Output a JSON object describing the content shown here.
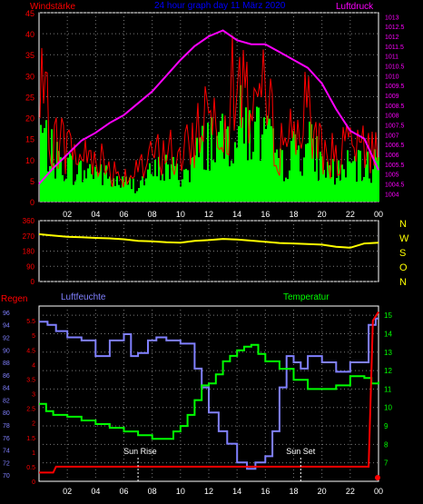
{
  "header": {
    "left": "Windstärke",
    "center": "24 hour graph day  11 März 2020",
    "right": "Luftdruck"
  },
  "labels": {
    "regen": "Regen",
    "luftfeuchte": "Luftfeuchte",
    "temperatur": "Temperatur",
    "sunrise": "Sun Rise",
    "sunset": "Sun Set"
  },
  "compass": [
    "N",
    "W",
    "S",
    "O",
    "N"
  ],
  "colors": {
    "background": "#000000",
    "wind": "#ff0000",
    "gust": "#00ff00",
    "pressure": "#ff00ff",
    "direction": "#ffff00",
    "humidity": "#8080ff",
    "temperature": "#00ff00",
    "rain": "#ff0000",
    "grid": "#808080",
    "left_axis": "#ff0000",
    "header_center": "#0000ff"
  },
  "chart_data": [
    {
      "type": "line",
      "name": "wind",
      "x_ticks": [
        "02",
        "04",
        "06",
        "08",
        "10",
        "12",
        "14",
        "16",
        "18",
        "20",
        "22",
        "00"
      ],
      "x_range_hours": [
        0,
        24
      ],
      "y_left_ticks": [
        "0",
        "5",
        "10",
        "15",
        "20",
        "25",
        "30",
        "35",
        "40",
        "45"
      ],
      "y_left_range": [
        0,
        45
      ],
      "y_right_ticks": [
        "1004",
        "1004.5",
        "1005",
        "1005.5",
        "1006",
        "1006.5",
        "1007",
        "1007.5",
        "1008",
        "1008.5",
        "1009",
        "1009.5",
        "1010",
        "1010.5",
        "1011",
        "1011.5",
        "1012",
        "1012.5",
        "1013"
      ],
      "y_right_range": [
        1003.6,
        1013.2
      ],
      "wind_profile": {
        "x": [
          0,
          1,
          2,
          3,
          4,
          5,
          6,
          7,
          8,
          9,
          10,
          11,
          12,
          13,
          14,
          15,
          16,
          17,
          18,
          19,
          20,
          21,
          22,
          23,
          24
        ],
        "y": [
          20,
          12,
          10,
          8,
          9,
          6,
          5,
          5,
          8,
          10,
          7,
          12,
          18,
          16,
          22,
          20,
          18,
          10,
          14,
          16,
          10,
          8,
          10,
          9,
          12
        ]
      },
      "pressure": {
        "x": [
          0,
          1,
          2,
          3,
          4,
          5,
          6,
          7,
          8,
          9,
          10,
          11,
          12,
          13,
          14,
          15,
          16,
          17,
          18,
          19,
          20,
          21,
          22,
          23,
          24
        ],
        "y": [
          1004.5,
          1005.3,
          1006,
          1006.7,
          1007.1,
          1007.6,
          1008,
          1008.6,
          1009.2,
          1010,
          1010.8,
          1011.5,
          1012,
          1012.3,
          1011.8,
          1011.6,
          1011.6,
          1011.2,
          1010.8,
          1010.4,
          1009.6,
          1008.3,
          1007.2,
          1006.8,
          1005.2
        ]
      }
    },
    {
      "type": "line",
      "name": "direction",
      "y_ticks": [
        "360",
        "270",
        "180",
        "90",
        "0"
      ],
      "y_range": [
        0,
        360
      ],
      "x": [
        0,
        1,
        2,
        3,
        4,
        5,
        6,
        7,
        8,
        9,
        10,
        11,
        12,
        13,
        14,
        15,
        16,
        17,
        18,
        19,
        20,
        21,
        22,
        23,
        24
      ],
      "y": [
        280,
        272,
        265,
        262,
        258,
        255,
        250,
        240,
        238,
        232,
        230,
        240,
        245,
        252,
        248,
        242,
        235,
        228,
        225,
        222,
        218,
        205,
        200,
        225,
        230
      ]
    },
    {
      "type": "line",
      "name": "weather",
      "y_rain_ticks": [
        "0",
        "0.5",
        "1",
        "1.5",
        "2",
        "2.5",
        "3",
        "3.5",
        "4",
        "4.5",
        "5",
        "5.5"
      ],
      "y_rain_range": [
        0,
        6
      ],
      "y_humidity_ticks": [
        "70",
        "72",
        "74",
        "76",
        "78",
        "80",
        "82",
        "84",
        "86",
        "88",
        "90",
        "92",
        "94",
        "96"
      ],
      "y_humidity_range": [
        69,
        97
      ],
      "y_temp_ticks": [
        "7",
        "8",
        "9",
        "10",
        "11",
        "12",
        "13",
        "14",
        "15"
      ],
      "y_temp_range": [
        6,
        15.5
      ],
      "humidity": {
        "x": [
          0,
          0.6,
          1.2,
          2,
          3,
          4,
          5,
          6,
          6.5,
          7,
          7.7,
          8.3,
          9,
          10,
          11,
          11.5,
          12,
          12.7,
          13.3,
          14,
          14.7,
          15.3,
          16,
          16.5,
          17,
          17.5,
          18,
          18.5,
          19,
          20,
          21,
          22,
          23,
          23.3,
          23.8,
          24
        ],
        "y": [
          94.5,
          94,
          93,
          92,
          91.5,
          89,
          91.5,
          92.5,
          89,
          89.5,
          91.5,
          92,
          91.5,
          91,
          87,
          84,
          80,
          77,
          75,
          72,
          71,
          72,
          73,
          77,
          84,
          89,
          88,
          87,
          89,
          88,
          86.5,
          88,
          88,
          94,
          95,
          95
        ]
      },
      "temperature": {
        "x": [
          0,
          0.5,
          1,
          2,
          3,
          4,
          5,
          6,
          7,
          8,
          9,
          9.5,
          10,
          10.5,
          11,
          11.5,
          12,
          12.5,
          13,
          13.5,
          14,
          14.5,
          15,
          15.5,
          16,
          17,
          18,
          19,
          20,
          21,
          22,
          23,
          23.5,
          24
        ],
        "y": [
          10.2,
          9.8,
          9.6,
          9.5,
          9.3,
          9.1,
          8.9,
          8.7,
          8.5,
          8.3,
          8.3,
          8.7,
          9,
          9.6,
          10.4,
          11.2,
          11.3,
          11.8,
          12.5,
          12.8,
          13.1,
          13.3,
          13.4,
          12.9,
          12.5,
          12.1,
          11.5,
          11,
          11,
          11.2,
          11.7,
          11.6,
          11.3,
          11.4
        ]
      },
      "rain": {
        "x": [
          0,
          1,
          1.2,
          22.5,
          23.3,
          23.6,
          24
        ],
        "y": [
          0.3,
          0.3,
          0.5,
          0.5,
          0.5,
          5.5,
          5.8
        ]
      }
    }
  ]
}
